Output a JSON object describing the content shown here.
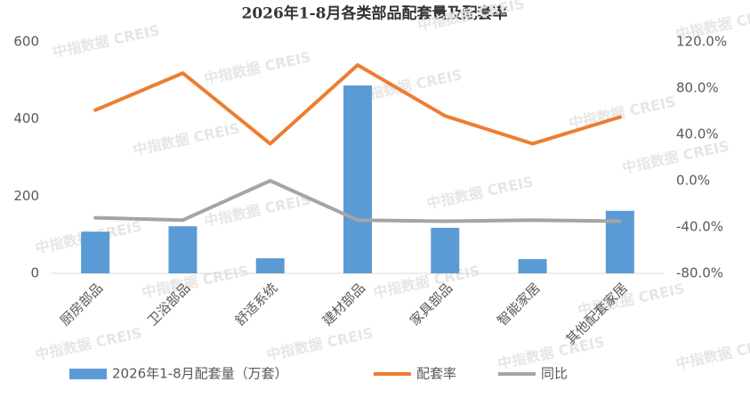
{
  "chart_data": {
    "type": "bar-line",
    "title": "2026年1-8月各类部品配套量及配套率",
    "watermark": "中指数据 CREIS",
    "categories": [
      "厨房部品",
      "卫浴部品",
      "舒适系统",
      "建材部品",
      "家具部品",
      "智能家居",
      "其他配套家居"
    ],
    "series": [
      {
        "name": "2026年1-8月配套量（万套）",
        "type": "bar",
        "color": "#5b9bd5",
        "values": [
          108,
          122,
          39,
          487,
          118,
          37,
          162
        ]
      },
      {
        "name": "配套率",
        "type": "line",
        "axis": "y2",
        "color": "#ed7d31",
        "values": [
          61,
          93,
          32,
          100,
          56,
          32,
          55
        ]
      },
      {
        "name": "同比",
        "type": "line",
        "axis": "y2",
        "color": "#a5a5a5",
        "values": [
          -32,
          -34,
          0,
          -34,
          -35,
          -34,
          -35
        ]
      }
    ],
    "ylim": [
      0,
      600
    ],
    "yticks": [
      0,
      200,
      400,
      600
    ],
    "y2lim": [
      -80,
      120
    ],
    "y2ticks": [
      {
        "value": -80,
        "label": "-80.0%"
      },
      {
        "value": -40,
        "label": "-40.0%"
      },
      {
        "value": 0,
        "label": "0.0%"
      },
      {
        "value": 40,
        "label": "40.0%"
      },
      {
        "value": 80,
        "label": "80.0%"
      },
      {
        "value": 120,
        "label": "120.0%"
      }
    ],
    "grid": false,
    "legend": "bottom"
  }
}
